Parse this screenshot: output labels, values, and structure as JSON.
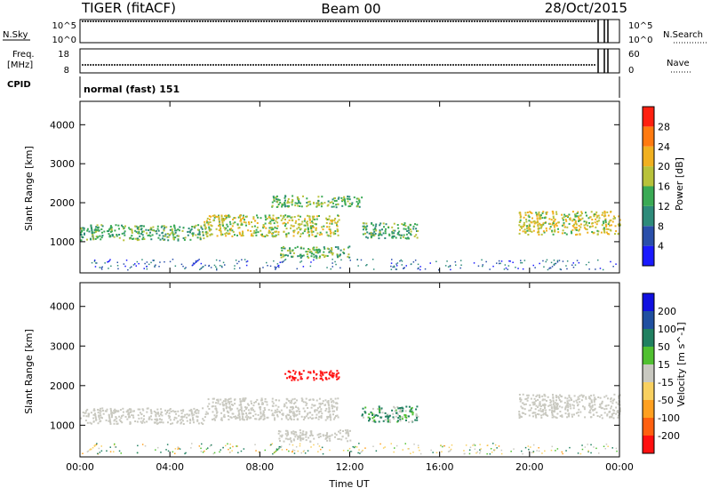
{
  "header": {
    "title_left": "TIGER (fitACF)",
    "title_center": "Beam 00",
    "title_right": "28/Oct/2015"
  },
  "strips": {
    "nsky_label": "N.Sky",
    "nsky_ticks": [
      "10^5",
      "10^0"
    ],
    "nsearch_label": "N.Search",
    "nsearch_ticks": [
      "10^5",
      "10^0"
    ],
    "freq_label_line1": "Freq.",
    "freq_label_line2": "[MHz]",
    "freq_ticks": [
      "18",
      "8"
    ],
    "nave_label": "Nave",
    "nave_ticks": [
      "60",
      "0"
    ],
    "cpid_label": "CPID",
    "cpid_text": "normal (fast) 151"
  },
  "colors": {
    "power_scale": [
      "#1a1aff",
      "#2a4faa",
      "#2e8b7a",
      "#3aaa55",
      "#b8c23a",
      "#f0b020",
      "#ff7a10",
      "#ff2010"
    ],
    "velocity_scale": [
      "#1010e0",
      "#2050a0",
      "#208060",
      "#50c030",
      "#c8c8c0",
      "#f8d060",
      "#ffa020",
      "#ff6010",
      "#ff1010"
    ],
    "scatter_gray": "#c9c9c0"
  },
  "chart_data": [
    {
      "type": "heatmap",
      "name": "power",
      "ylabel": "Slant Range [km]",
      "y_ticks": [
        1000,
        2000,
        3000,
        4000
      ],
      "ylim": [
        200,
        4600
      ],
      "x_ticks": [
        "00:00",
        "04:00",
        "08:00",
        "12:00",
        "16:00",
        "20:00",
        "00:00"
      ],
      "xlim_hours": [
        0,
        24
      ],
      "colorbar_label": "Power [dB]",
      "colorbar_ticks": [
        "28",
        "24",
        "20",
        "16",
        "12",
        "8",
        "4"
      ],
      "colorbar_range": [
        0,
        32
      ],
      "regions": [
        {
          "t0": 0,
          "t1": 5.5,
          "r0": 1050,
          "r1": 1450,
          "level": 14
        },
        {
          "t0": 5.5,
          "t1": 11.5,
          "r0": 1150,
          "r1": 1700,
          "level": 18
        },
        {
          "t0": 8.5,
          "t1": 12.5,
          "r0": 1900,
          "r1": 2200,
          "level": 15
        },
        {
          "t0": 8.8,
          "t1": 12.0,
          "r0": 600,
          "r1": 900,
          "level": 14
        },
        {
          "t0": 12.5,
          "t1": 15.0,
          "r0": 1100,
          "r1": 1500,
          "level": 13
        },
        {
          "t0": 19.5,
          "t1": 24.0,
          "r0": 1200,
          "r1": 1800,
          "level": 19
        }
      ]
    },
    {
      "type": "heatmap",
      "name": "velocity",
      "ylabel": "Slant Range [km]",
      "y_ticks": [
        1000,
        2000,
        3000,
        4000
      ],
      "ylim": [
        200,
        4600
      ],
      "x_ticks": [
        "00:00",
        "04:00",
        "08:00",
        "12:00",
        "16:00",
        "20:00",
        "00:00"
      ],
      "xlim_hours": [
        0,
        24
      ],
      "xlabel": "Time UT",
      "colorbar_label": "Velocity [m s^-1]",
      "colorbar_ticks": [
        "200",
        "100",
        "50",
        "15",
        "-15",
        "-50",
        "-100",
        "-200"
      ],
      "regions": [
        {
          "t0": 0,
          "t1": 5.5,
          "r0": 1050,
          "r1": 1450,
          "velocity": 0
        },
        {
          "t0": 5.5,
          "t1": 11.5,
          "r0": 1150,
          "r1": 1700,
          "velocity": 0
        },
        {
          "t0": 9.0,
          "t1": 11.5,
          "r0": 2150,
          "r1": 2400,
          "velocity": -200
        },
        {
          "t0": 8.8,
          "t1": 12.0,
          "r0": 600,
          "r1": 900,
          "velocity": 0
        },
        {
          "t0": 12.5,
          "t1": 15.0,
          "r0": 1100,
          "r1": 1500,
          "velocity": 30
        },
        {
          "t0": 19.5,
          "t1": 24.0,
          "r0": 1200,
          "r1": 1800,
          "velocity": 0
        }
      ]
    }
  ]
}
